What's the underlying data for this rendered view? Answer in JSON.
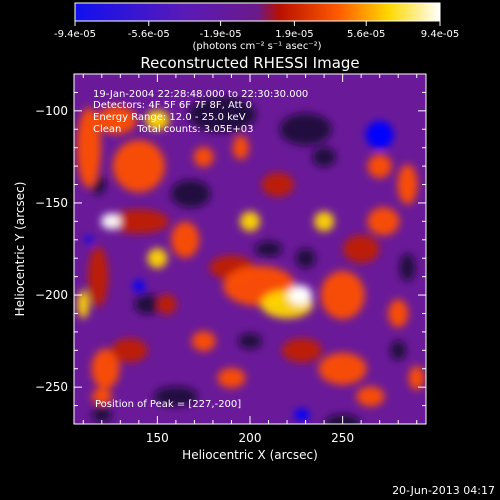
{
  "colorbar": {
    "tick_labels": [
      "-9.4e-05",
      "-5.6e-05",
      "-1.9e-05",
      "1.9e-05",
      "5.6e-05",
      "9.4e-05"
    ],
    "tick_values": [
      -9.4e-05,
      -5.6e-05,
      -1.9e-05,
      1.9e-05,
      5.6e-05,
      9.4e-05
    ],
    "range": [
      -9.4e-05,
      9.4e-05
    ],
    "units": "(photons cm⁻² s⁻¹ asec⁻²)"
  },
  "chart_data": {
    "type": "heatmap",
    "title": "Reconstructed RHESSI Image",
    "xlabel": "Heliocentric X (arcsec)",
    "ylabel": "Heliocentric Y (arcsec)",
    "xlim": [
      105,
      295
    ],
    "ylim": [
      -270,
      -80
    ],
    "xticks": [
      150,
      200,
      250
    ],
    "yticks": [
      -100,
      -150,
      -200,
      -250
    ],
    "annotations": [
      "19-Jan-2004 22:28:48.000 to 22:30:30.000",
      "Detectors: 4F 5F 6F 7F 8F, Att 0",
      "Energy Range: 12.0 - 25.0 keV",
      "Clean     Total counts: 3.05E+03"
    ],
    "peak_label": "Position of Peak = [227,-200]",
    "peak_position": [
      227,
      -200
    ],
    "colormap": [
      "#0000ff",
      "#6a1db2",
      "#7a2a92",
      "#c02000",
      "#ff5000",
      "#ffd800",
      "#ffffff"
    ]
  },
  "footer": {
    "timestamp": "20-Jun-2013 04:17"
  }
}
